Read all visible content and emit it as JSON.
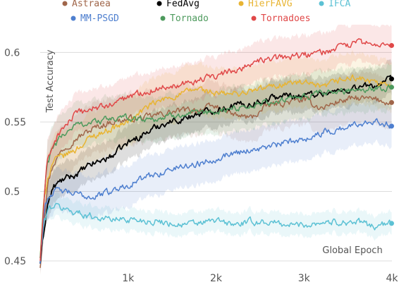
{
  "chart_data": {
    "type": "line",
    "title": "",
    "xlabel": "Global Epoch",
    "ylabel": "Test Accuracy",
    "xlim": [
      0,
      4000
    ],
    "ylim": [
      0.45,
      0.62
    ],
    "x_ticks": [
      1000,
      2000,
      3000,
      4000
    ],
    "x_tick_labels": [
      "1k",
      "2k",
      "3k",
      "4k"
    ],
    "y_ticks": [
      0.45,
      0.5,
      0.55,
      0.6
    ],
    "y_tick_labels": [
      "0.45",
      "0.5",
      "0.55",
      "0.6"
    ],
    "grid": "horizontal",
    "legend_position": "top",
    "series": [
      {
        "name": "Astraea",
        "color": "#a0664a",
        "band": 0.018,
        "final_marker": true,
        "x": [
          0,
          40,
          80,
          150,
          250,
          400,
          600,
          800,
          1000,
          1200,
          1400,
          1600,
          1800,
          2000,
          2200,
          2400,
          2600,
          2800,
          3000,
          3200,
          3400,
          3600,
          3800,
          4000
        ],
        "y": [
          0.445,
          0.48,
          0.505,
          0.52,
          0.53,
          0.538,
          0.545,
          0.55,
          0.552,
          0.553,
          0.556,
          0.558,
          0.559,
          0.561,
          0.555,
          0.553,
          0.562,
          0.564,
          0.566,
          0.56,
          0.565,
          0.567,
          0.566,
          0.564
        ]
      },
      {
        "name": "FedAvg",
        "color": "#000000",
        "band": 0.012,
        "final_marker": true,
        "x": [
          0,
          40,
          80,
          150,
          250,
          400,
          600,
          800,
          1000,
          1200,
          1400,
          1600,
          1800,
          2000,
          2200,
          2400,
          2600,
          2800,
          3000,
          3200,
          3400,
          3600,
          3800,
          4000
        ],
        "y": [
          0.448,
          0.47,
          0.49,
          0.503,
          0.508,
          0.512,
          0.52,
          0.525,
          0.535,
          0.542,
          0.549,
          0.552,
          0.556,
          0.559,
          0.562,
          0.563,
          0.567,
          0.569,
          0.569,
          0.571,
          0.572,
          0.575,
          0.576,
          0.581
        ]
      },
      {
        "name": "HierFAVG",
        "color": "#e8b432",
        "band": 0.018,
        "final_marker": false,
        "x": [
          0,
          40,
          80,
          150,
          250,
          400,
          600,
          800,
          1000,
          1200,
          1400,
          1600,
          1800,
          2000,
          2200,
          2400,
          2600,
          2800,
          3000,
          3200,
          3400,
          3600,
          3800,
          4000
        ],
        "y": [
          0.452,
          0.49,
          0.51,
          0.522,
          0.525,
          0.53,
          0.54,
          0.545,
          0.55,
          0.56,
          0.566,
          0.57,
          0.574,
          0.57,
          0.57,
          0.572,
          0.575,
          0.578,
          0.578,
          0.574,
          0.58,
          0.582,
          0.578,
          0.575
        ]
      },
      {
        "name": "IFCA",
        "color": "#5cc1d4",
        "band": 0.008,
        "final_marker": true,
        "x": [
          0,
          40,
          80,
          150,
          250,
          400,
          600,
          800,
          1000,
          1200,
          1400,
          1600,
          1800,
          2000,
          2200,
          2400,
          2600,
          2800,
          3000,
          3200,
          3400,
          3600,
          3800,
          4000
        ],
        "y": [
          0.452,
          0.475,
          0.486,
          0.49,
          0.488,
          0.485,
          0.482,
          0.48,
          0.48,
          0.479,
          0.478,
          0.476,
          0.477,
          0.479,
          0.476,
          0.478,
          0.478,
          0.476,
          0.476,
          0.478,
          0.478,
          0.478,
          0.475,
          0.477
        ]
      },
      {
        "name": "MM-PSGD",
        "color": "#4e7fcf",
        "band": 0.015,
        "final_marker": true,
        "x": [
          0,
          40,
          80,
          150,
          250,
          400,
          600,
          800,
          1000,
          1200,
          1400,
          1600,
          1800,
          2000,
          2200,
          2400,
          2600,
          2800,
          3000,
          3200,
          3400,
          3600,
          3800,
          4000
        ],
        "y": [
          0.448,
          0.485,
          0.495,
          0.5,
          0.5,
          0.498,
          0.496,
          0.5,
          0.505,
          0.51,
          0.514,
          0.518,
          0.52,
          0.524,
          0.528,
          0.53,
          0.532,
          0.535,
          0.538,
          0.542,
          0.545,
          0.548,
          0.552,
          0.547
        ]
      },
      {
        "name": "Tornado",
        "color": "#4d9a5d",
        "band": 0.016,
        "final_marker": true,
        "x": [
          0,
          40,
          80,
          150,
          250,
          400,
          600,
          800,
          1000,
          1200,
          1400,
          1600,
          1800,
          2000,
          2200,
          2400,
          2600,
          2800,
          3000,
          3200,
          3400,
          3600,
          3800,
          4000
        ],
        "y": [
          0.452,
          0.49,
          0.52,
          0.532,
          0.54,
          0.548,
          0.55,
          0.552,
          0.553,
          0.552,
          0.553,
          0.556,
          0.555,
          0.557,
          0.56,
          0.562,
          0.564,
          0.566,
          0.568,
          0.57,
          0.572,
          0.574,
          0.574,
          0.575
        ]
      },
      {
        "name": "Tornadoes",
        "color": "#e04848",
        "band": 0.014,
        "final_marker": true,
        "x": [
          0,
          40,
          80,
          150,
          250,
          400,
          600,
          800,
          1000,
          1200,
          1400,
          1600,
          1800,
          2000,
          2200,
          2400,
          2600,
          2800,
          3000,
          3200,
          3400,
          3600,
          3800,
          4000
        ],
        "y": [
          0.45,
          0.49,
          0.52,
          0.535,
          0.545,
          0.555,
          0.56,
          0.562,
          0.568,
          0.572,
          0.575,
          0.578,
          0.58,
          0.583,
          0.587,
          0.592,
          0.595,
          0.597,
          0.598,
          0.6,
          0.603,
          0.607,
          0.606,
          0.605
        ]
      }
    ]
  }
}
